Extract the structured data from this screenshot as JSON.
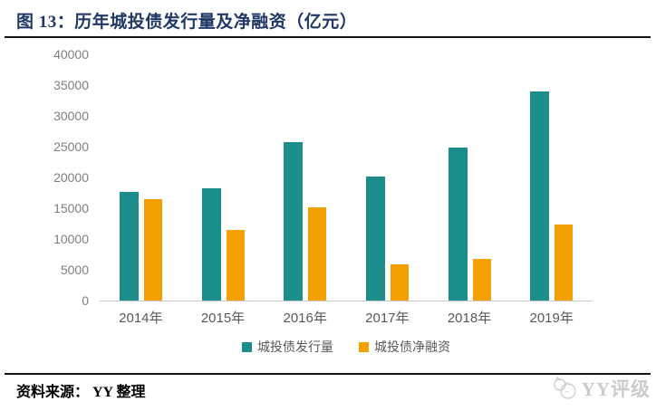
{
  "header": {
    "title": "图 13：历年城投债发行量及净融资（亿元）"
  },
  "chart_data": {
    "type": "bar",
    "title": "图 13：历年城投债发行量及净融资（亿元）",
    "unit": "亿元",
    "categories": [
      "2014年",
      "2015年",
      "2016年",
      "2017年",
      "2018年",
      "2019年"
    ],
    "series": [
      {
        "name": "城投债发行量",
        "color": "#1B8E8B",
        "values": [
          17700,
          18300,
          25800,
          20100,
          24900,
          34000
        ]
      },
      {
        "name": "城投债净融资",
        "color": "#F2A002",
        "values": [
          16400,
          11400,
          15200,
          5900,
          6700,
          12300
        ]
      }
    ],
    "ylim": [
      0,
      40000
    ],
    "yticks": [
      0,
      5000,
      10000,
      15000,
      20000,
      25000,
      30000,
      35000,
      40000
    ],
    "grid": false,
    "legend_position": "bottom"
  },
  "footer": {
    "source": "资料来源： YY 整理",
    "logo_text": "YY评级"
  },
  "colors": {
    "title": "#1F3864",
    "axis_label": "#7F7F7F",
    "category_label": "#595959",
    "rule": "#141414",
    "baseline": "#C9C9C9",
    "logo": "#C9C9C9"
  }
}
